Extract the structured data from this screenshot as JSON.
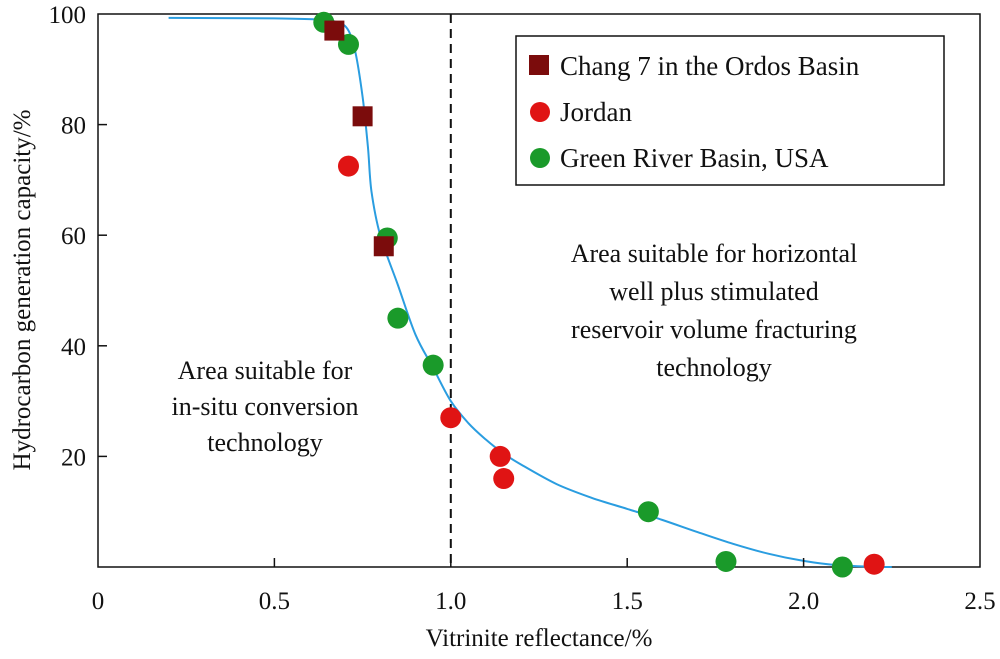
{
  "chart_data": {
    "type": "scatter",
    "xlabel": "Vitrinite reflectance/%",
    "ylabel": "Hydrocarbon generation capacity/%",
    "xlim": [
      0,
      2.5
    ],
    "ylim": [
      0,
      100
    ],
    "x_ticks": [
      "0",
      "0.5",
      "1.0",
      "1.5",
      "2.0",
      "2.5"
    ],
    "x_tick_values": [
      0,
      0.5,
      1.0,
      1.5,
      2.0,
      2.5
    ],
    "y_ticks": [
      "20",
      "40",
      "60",
      "80",
      "100"
    ],
    "y_tick_values": [
      20,
      40,
      60,
      80,
      100
    ],
    "grid": false,
    "legend_position": "top-right",
    "colors": {
      "chang7": "#7b0c0c",
      "jordan": "#e01414",
      "green_river": "#1a9a2a",
      "trend": "#2a9de0"
    },
    "series": [
      {
        "name": "Chang 7 in the Ordos Basin",
        "marker": "square",
        "color": "#7b0c0c",
        "points": [
          [
            0.67,
            97
          ],
          [
            0.75,
            81.5
          ],
          [
            0.81,
            58
          ]
        ]
      },
      {
        "name": "Jordan",
        "marker": "circle",
        "color": "#e01414",
        "points": [
          [
            0.71,
            72.5
          ],
          [
            1.0,
            27
          ],
          [
            1.14,
            20
          ],
          [
            1.15,
            16
          ],
          [
            2.2,
            0.5
          ]
        ]
      },
      {
        "name": "Green River Basin, USA",
        "marker": "circle",
        "color": "#1a9a2a",
        "points": [
          [
            0.64,
            98.5
          ],
          [
            0.71,
            94.5
          ],
          [
            0.82,
            59.5
          ],
          [
            0.85,
            45
          ],
          [
            0.95,
            36.5
          ],
          [
            1.56,
            10
          ],
          [
            1.78,
            1
          ],
          [
            2.11,
            0
          ]
        ]
      }
    ],
    "trend_line": {
      "color": "#2a9de0",
      "points": [
        [
          0.2,
          99.3
        ],
        [
          0.5,
          99.2
        ],
        [
          0.62,
          99
        ],
        [
          0.68,
          98.5
        ],
        [
          0.71,
          97
        ],
        [
          0.73,
          93
        ],
        [
          0.75,
          85
        ],
        [
          0.765,
          76
        ],
        [
          0.775,
          68
        ],
        [
          0.8,
          60
        ],
        [
          0.85,
          51
        ],
        [
          0.9,
          42
        ],
        [
          0.95,
          36
        ],
        [
          1.0,
          30
        ],
        [
          1.05,
          26
        ],
        [
          1.1,
          23
        ],
        [
          1.15,
          20.5
        ],
        [
          1.2,
          18.5
        ],
        [
          1.3,
          15
        ],
        [
          1.4,
          12.5
        ],
        [
          1.5,
          10.5
        ],
        [
          1.6,
          8.5
        ],
        [
          1.7,
          6.3
        ],
        [
          1.8,
          4.2
        ],
        [
          1.9,
          2.4
        ],
        [
          2.0,
          1.1
        ],
        [
          2.1,
          0.3
        ],
        [
          2.2,
          0.05
        ],
        [
          2.25,
          0
        ]
      ]
    },
    "divider_x": 1.0,
    "annotations": {
      "left": [
        "Area suitable for",
        "in-situ conversion",
        "technology"
      ],
      "right": [
        "Area suitable for horizontal",
        "well plus stimulated",
        "reservoir volume fracturing",
        "technology"
      ]
    }
  }
}
